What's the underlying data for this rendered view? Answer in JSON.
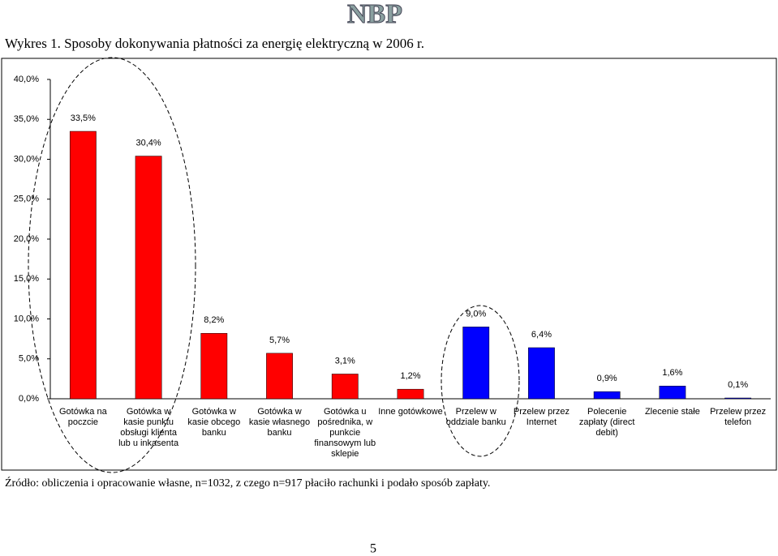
{
  "logo": "NBP",
  "header": {
    "title": "Wykres 1. Sposoby dokonywania płatności za energię elektryczną w 2006 r."
  },
  "chart_data": {
    "type": "bar",
    "categories": [
      "Gotówka na poczcie",
      "Gotówka w kasie punktu obsługi klienta lub u inkasenta",
      "Gotówka w kasie obcego banku",
      "Gotówka w kasie własnego banku",
      "Gotówka u pośrednika, w punkcie finansowym lub sklepie",
      "Inne gotówkowe",
      "Przelew w oddziale banku",
      "Przelew przez Internet",
      "Polecenie zapłaty (direct debit)",
      "Zlecenie stałe",
      "Przelew przez telefon"
    ],
    "values": [
      33.5,
      30.4,
      8.2,
      5.7,
      3.1,
      1.2,
      9.0,
      6.4,
      0.9,
      1.6,
      0.1
    ],
    "value_labels": [
      "33,5%",
      "30,4%",
      "8,2%",
      "5,7%",
      "3,1%",
      "1,2%",
      "9,0%",
      "6,4%",
      "0,9%",
      "1,6%",
      "0,1%"
    ],
    "colors": [
      "#ff0000",
      "#ff0000",
      "#ff0000",
      "#ff0000",
      "#ff0000",
      "#ff0000",
      "#0000ff",
      "#0000ff",
      "#0000ff",
      "#0000ff",
      "#0000ff"
    ],
    "ylim": [
      0,
      40
    ],
    "yticks": [
      {
        "value": 0,
        "label": "0,0%"
      },
      {
        "value": 5,
        "label": "5,0%"
      },
      {
        "value": 10,
        "label": "10,0%"
      },
      {
        "value": 15,
        "label": "15,0%"
      },
      {
        "value": 20,
        "label": "20,0%"
      },
      {
        "value": 25,
        "label": "25,0%"
      },
      {
        "value": 30,
        "label": "30,0%"
      },
      {
        "value": 35,
        "label": "35,0%"
      },
      {
        "value": 40,
        "label": "40,0%"
      }
    ],
    "grid": false
  },
  "source": "Źródło: obliczenia i opracowanie własne, n=1032, z czego n=917 płaciło rachunki i podało sposób zapłaty.",
  "page_number": "5"
}
